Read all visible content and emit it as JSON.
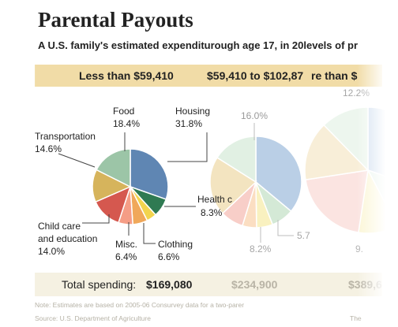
{
  "header": {
    "title": "Parental Payouts",
    "subtitle": "A U.S. family's estimated expenditurough age 17, in 20levels of pr"
  },
  "income_groups": [
    "Less than $59,410",
    "$59,410 to $102,87",
    "re than $"
  ],
  "totals": {
    "label": "Total spending:",
    "group1": "$169,080",
    "group2": "$234,900",
    "group3": "$389,6"
  },
  "footer": {
    "note": "Note: Estimates are based on 2005-06 Consurvey data for a two-parer",
    "source": "Source: U.S. Department of Agriculture",
    "source_tail": "The"
  },
  "chart_data": [
    {
      "type": "pie",
      "title": "Less than $59,410",
      "total": "$169,080",
      "slices": [
        {
          "label": "Housing",
          "value": 31.8,
          "color": "#5f86b3"
        },
        {
          "label": "Health c",
          "value": 8.3,
          "color": "#2f7a52"
        },
        {
          "label": "",
          "value": 4.5,
          "color": "#f2d44e"
        },
        {
          "label": "Clothing",
          "value": 6.6,
          "color": "#f0a85a"
        },
        {
          "label": "Misc.",
          "value": 6.4,
          "color": "#f59d86"
        },
        {
          "label": "Child care and education",
          "value": 14.0,
          "color": "#d5584f"
        },
        {
          "label": "Transportation",
          "value": 14.6,
          "color": "#d6b45c"
        },
        {
          "label": "Food",
          "value": 18.4,
          "color": "#9cc5a7"
        }
      ],
      "labels": {
        "food": {
          "name": "Food",
          "value": "18.4%"
        },
        "housing": {
          "name": "Housing",
          "value": "31.8%"
        },
        "transportation": {
          "name": "Transportation",
          "value": "14.6%"
        },
        "health": {
          "name": "Health c",
          "value": "8.3%"
        },
        "childcare_line1": "Child care",
        "childcare_line2": "and education",
        "childcare_value": "14.0%",
        "misc": {
          "name": "Misc.",
          "value": "6.4%"
        },
        "clothing": {
          "name": "Clothing",
          "value": "6.6%"
        }
      }
    },
    {
      "type": "pie",
      "title": "$59,410 to $102,87",
      "total": "$234,900",
      "slices": [
        {
          "label": "",
          "value": 36,
          "color": "#8fb2d6"
        },
        {
          "label": "",
          "value": 8,
          "color": "#b9dcbd"
        },
        {
          "label": "",
          "value": 5.7,
          "color": "#f6e89a"
        },
        {
          "label": "",
          "value": 5,
          "color": "#f8c99c"
        },
        {
          "label": "",
          "value": 8.2,
          "color": "#f4b0a6"
        },
        {
          "label": "",
          "value": 21,
          "color": "#ebd39a"
        },
        {
          "label": "",
          "value": 16.0,
          "color": "#cfe6d2"
        }
      ],
      "labels": {
        "top": "16.0%",
        "right": "5.7",
        "bottom": "8.2%"
      }
    },
    {
      "type": "pie",
      "title": "re than $",
      "total": "$389,6",
      "slices": [
        {
          "label": "",
          "value": 30,
          "color": "#9ab9db"
        },
        {
          "label": "",
          "value": 12,
          "color": "#cfe7d6"
        },
        {
          "label": "",
          "value": 10,
          "color": "#f7eba5"
        },
        {
          "label": "",
          "value": 20,
          "color": "#f6c3bd"
        },
        {
          "label": "",
          "value": 15,
          "color": "#f0d9a8"
        },
        {
          "label": "",
          "value": 12.2,
          "color": "#d7ead9"
        }
      ],
      "labels": {
        "top": "12.2%",
        "bottom": "9."
      }
    }
  ]
}
